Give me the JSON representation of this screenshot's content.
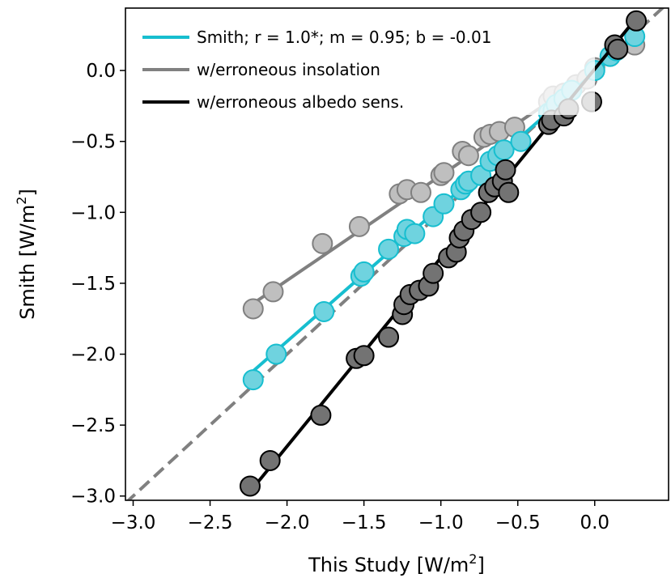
{
  "chart_data": {
    "type": "scatter",
    "xlabel": "This Study [W/m",
    "xlabel_sup": "2",
    "xlabel_end": "]",
    "ylabel": "Smith [W/m",
    "ylabel_sup": "2",
    "ylabel_end": "]",
    "xlim": [
      -3.05,
      0.48
    ],
    "ylim": [
      -3.03,
      0.44
    ],
    "xticks": [
      -3.0,
      -2.5,
      -2.0,
      -1.5,
      -1.0,
      -0.5,
      0.0
    ],
    "xtick_labels": [
      "−3.0",
      "−2.5",
      "−2.0",
      "−1.5",
      "−1.0",
      "−0.5",
      "0.0"
    ],
    "yticks": [
      -3.0,
      -2.5,
      -2.0,
      -1.5,
      -1.0,
      -0.5,
      0.0
    ],
    "ytick_labels": [
      "−3.0",
      "−2.5",
      "−2.0",
      "−1.5",
      "−1.0",
      "−0.5",
      "0.0"
    ],
    "grid": false,
    "legend_position": "top-left",
    "reference_line": {
      "style": "dashed",
      "color": "#808080",
      "slope": 1,
      "intercept": 0
    },
    "series": [
      {
        "name": "w/erroneous insolation",
        "line_color": "#808080",
        "marker_face": "#bfbfbf",
        "marker_edge": "#808080",
        "fit": {
          "slope": 0.74,
          "intercept": 0.0
        },
        "x": [
          -2.22,
          -2.09,
          -1.77,
          -1.53,
          -1.27,
          -1.22,
          -1.13,
          -1.0,
          -0.98,
          -0.86,
          -0.82,
          -0.72,
          -0.68,
          -0.62,
          -0.52,
          -0.3,
          -0.27,
          -0.2,
          -0.12,
          -0.05,
          0.0,
          0.1,
          0.26
        ],
        "y": [
          -1.68,
          -1.56,
          -1.22,
          -1.1,
          -0.87,
          -0.84,
          -0.86,
          -0.74,
          -0.72,
          -0.57,
          -0.6,
          -0.47,
          -0.45,
          -0.43,
          -0.4,
          -0.22,
          -0.18,
          -0.16,
          -0.1,
          -0.06,
          0.02,
          0.1,
          0.18
        ]
      },
      {
        "name": "Smith; r = 1.0*; m = 0.95; b = -0.01",
        "line_color": "#17becf",
        "marker_face": "#6fd3df",
        "marker_edge": "#17becf",
        "fit": {
          "slope": 0.95,
          "intercept": -0.01
        },
        "x": [
          -2.22,
          -2.07,
          -1.76,
          -1.52,
          -1.5,
          -1.34,
          -1.24,
          -1.22,
          -1.17,
          -1.05,
          -0.98,
          -0.87,
          -0.84,
          -0.82,
          -0.74,
          -0.68,
          -0.63,
          -0.59,
          -0.48,
          -0.3,
          -0.27,
          -0.25,
          -0.2,
          -0.15,
          0.0,
          0.1,
          0.14,
          0.26
        ],
        "y": [
          -2.18,
          -2.0,
          -1.7,
          -1.45,
          -1.42,
          -1.26,
          -1.17,
          -1.12,
          -1.15,
          -1.03,
          -0.94,
          -0.84,
          -0.8,
          -0.78,
          -0.74,
          -0.64,
          -0.6,
          -0.56,
          -0.5,
          -0.3,
          -0.28,
          -0.24,
          -0.2,
          -0.14,
          0.0,
          0.1,
          0.14,
          0.24
        ]
      },
      {
        "name": "w/erroneous albedo sens.",
        "line_color": "#000000",
        "marker_face": "#737373",
        "marker_edge": "#000000",
        "fit": {
          "slope": 1.33,
          "intercept": 0.01
        },
        "x": [
          -2.24,
          -2.11,
          -1.78,
          -1.55,
          -1.5,
          -1.34,
          -1.25,
          -1.24,
          -1.2,
          -1.14,
          -1.08,
          -1.05,
          -0.95,
          -0.9,
          -0.88,
          -0.85,
          -0.8,
          -0.74,
          -0.69,
          -0.65,
          -0.6,
          -0.56,
          -0.58,
          -0.3,
          -0.28,
          -0.2,
          -0.17,
          -0.02,
          0.13,
          0.15,
          0.27
        ],
        "y": [
          -2.93,
          -2.75,
          -2.43,
          -2.03,
          -2.01,
          -1.88,
          -1.72,
          -1.65,
          -1.58,
          -1.55,
          -1.52,
          -1.43,
          -1.32,
          -1.28,
          -1.18,
          -1.13,
          -1.05,
          -1.0,
          -0.86,
          -0.82,
          -0.78,
          -0.86,
          -0.7,
          -0.38,
          -0.35,
          -0.32,
          -0.27,
          -0.22,
          0.18,
          0.15,
          0.35
        ]
      }
    ],
    "legend": [
      {
        "name": "Smith; r = 1.0*; m = 0.95; b = -0.01",
        "color": "#17becf"
      },
      {
        "name": "w/erroneous insolation",
        "color": "#808080"
      },
      {
        "name": "w/erroneous albedo sens.",
        "color": "#000000"
      }
    ]
  }
}
